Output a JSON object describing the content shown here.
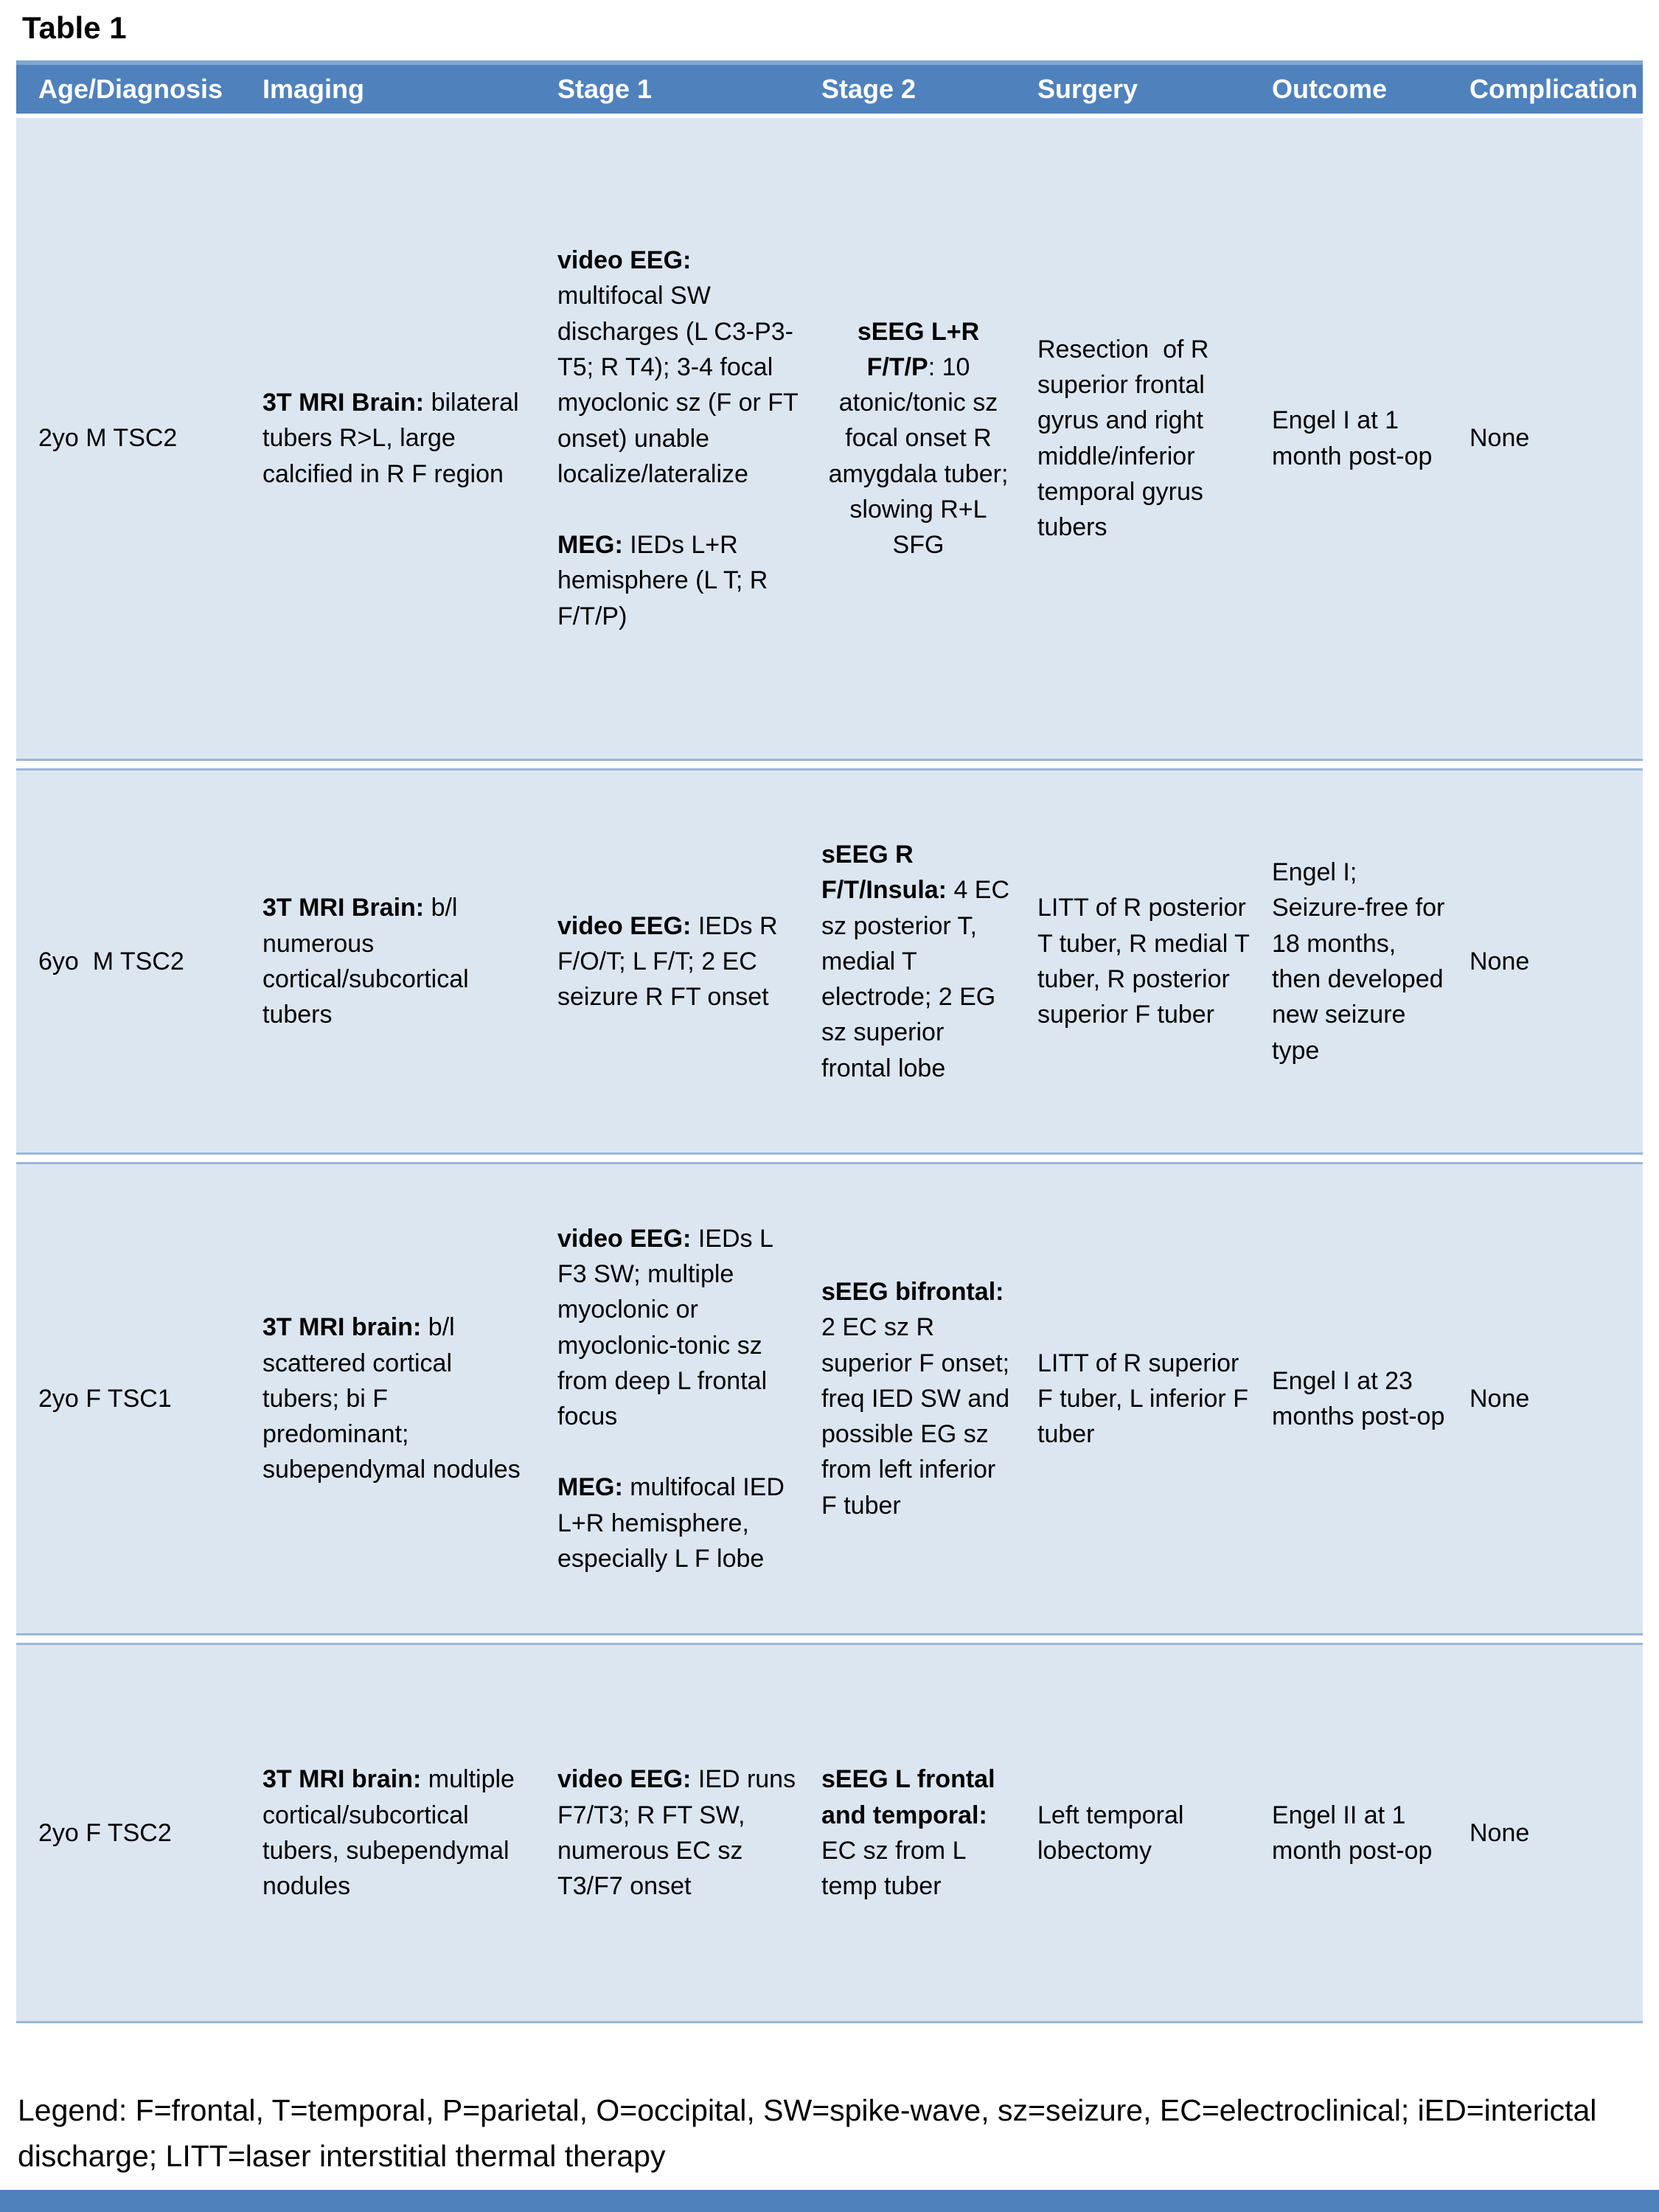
{
  "title": "Table 1",
  "colors": {
    "header_bg": "#4f81bd",
    "header_text": "#ffffff",
    "row_bg": "#dce6f1",
    "divider": "#9ab7d8",
    "bottom_bar": "#4f81bd"
  },
  "columns": [
    "Age/Diagnosis",
    "Imaging",
    "Stage 1",
    "Stage 2",
    "Surgery",
    "Outcome",
    "Complication"
  ],
  "rows": [
    {
      "age": "2yo M TSC2",
      "imaging": [
        [
          {
            "b": true,
            "t": "3T MRI Brain:"
          },
          {
            "t": " bilateral tubers R>L, large calcified in R F region"
          }
        ]
      ],
      "stage1": [
        [
          {
            "b": true,
            "t": "video EEG:"
          },
          {
            "t": " multifocal SW discharges (L C3-P3-T5; R T4); 3-4 focal myoclonic sz (F or FT onset) unable localize/lateralize"
          }
        ],
        [
          {
            "b": true,
            "t": "MEG:"
          },
          {
            "t": " IEDs L+R hemisphere (L T; R F/T/P)"
          }
        ]
      ],
      "stage2": [
        [
          {
            "b": true,
            "t": "sEEG L+R F/T/P"
          },
          {
            "t": ": 10 atonic/tonic sz focal onset R amygdala tuber; slowing R+L SFG"
          }
        ]
      ],
      "surgery": "Resection  of R superior frontal gyrus and right middle/inferior temporal gyrus tubers",
      "outcome": "Engel I at 1 month post-op",
      "complication": "None"
    },
    {
      "age": "6yo  M TSC2",
      "imaging": [
        [
          {
            "b": true,
            "t": "3T MRI Brain:"
          },
          {
            "t": " b/l numerous cortical/subcortical tubers"
          }
        ]
      ],
      "stage1": [
        [
          {
            "b": true,
            "t": "video EEG:"
          },
          {
            "t": " IEDs R F/O/T; L F/T; 2 EC seizure R FT onset"
          }
        ]
      ],
      "stage2": [
        [
          {
            "b": true,
            "t": "sEEG R F/T/Insula:"
          },
          {
            "t": " 4 EC sz posterior T, medial T electrode; 2 EG sz superior frontal lobe"
          }
        ]
      ],
      "surgery": "LITT of R posterior T tuber, R medial T tuber, R posterior superior F tuber",
      "outcome": "Engel I; Seizure-free for 18 months, then developed new seizure type",
      "complication": "None"
    },
    {
      "age": "2yo F TSC1",
      "imaging": [
        [
          {
            "b": true,
            "t": "3T MRI brain:"
          },
          {
            "t": " b/l scattered cortical tubers; bi F predominant; subependymal nodules"
          }
        ]
      ],
      "stage1": [
        [
          {
            "b": true,
            "t": "video EEG:"
          },
          {
            "t": " IEDs L F3 SW; multiple myoclonic or myoclonic-tonic sz from deep L frontal focus"
          }
        ],
        [
          {
            "b": true,
            "t": "MEG:"
          },
          {
            "t": " multifocal IED L+R hemisphere, especially L F lobe"
          }
        ]
      ],
      "stage2": [
        [
          {
            "b": true,
            "t": "sEEG bifrontal:"
          },
          {
            "t": " 2 EC sz R superior F onset; freq IED SW and possible EG sz from left inferior F tuber"
          }
        ]
      ],
      "surgery": "LITT of R superior F tuber, L inferior F tuber",
      "outcome": "Engel I at 23 months post-op",
      "complication": "None"
    },
    {
      "age": "2yo F TSC2",
      "imaging": [
        [
          {
            "b": true,
            "t": "3T MRI brain:"
          },
          {
            "t": " multiple cortical/subcortical tubers, subependymal nodules"
          }
        ]
      ],
      "stage1": [
        [
          {
            "b": true,
            "t": "video EEG:"
          },
          {
            "t": " IED runs F7/T3; R FT SW, numerous EC sz T3/F7 onset"
          }
        ]
      ],
      "stage2": [
        [
          {
            "b": true,
            "t": "sEEG L frontal and temporal:"
          },
          {
            "t": " EC sz from L temp tuber"
          }
        ]
      ],
      "surgery": "Left temporal lobectomy",
      "outcome": "Engel II at 1 month post-op",
      "complication": "None"
    }
  ],
  "legend": "Legend: F=frontal, T=temporal, P=parietal, O=occipital, SW=spike-wave, sz=seizure, EC=electroclinical; iED=interictal discharge; LITT=laser interstitial thermal therapy"
}
